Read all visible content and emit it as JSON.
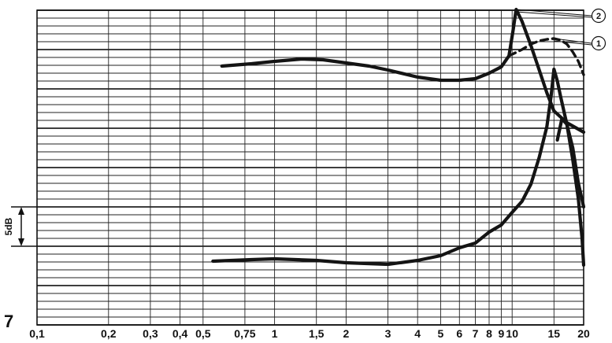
{
  "chart_data": {
    "type": "line",
    "figure_label": "7",
    "x_scale": "log",
    "x_range": [
      0.1,
      20
    ],
    "x_ticks": [
      {
        "value": 0.1,
        "label": "0,1"
      },
      {
        "value": 0.2,
        "label": "0,2"
      },
      {
        "value": 0.3,
        "label": "0,3"
      },
      {
        "value": 0.4,
        "label": "0,4"
      },
      {
        "value": 0.5,
        "label": "0,5"
      },
      {
        "value": 0.75,
        "label": "0,75"
      },
      {
        "value": 1,
        "label": "1"
      },
      {
        "value": 1.5,
        "label": "1,5"
      },
      {
        "value": 2,
        "label": "2"
      },
      {
        "value": 3,
        "label": "3"
      },
      {
        "value": 4,
        "label": "4"
      },
      {
        "value": 5,
        "label": "5"
      },
      {
        "value": 6,
        "label": "6"
      },
      {
        "value": 7,
        "label": "7"
      },
      {
        "value": 8,
        "label": "8"
      },
      {
        "value": 9,
        "label": "9"
      },
      {
        "value": 10,
        "label": "10"
      },
      {
        "value": 15,
        "label": "15"
      },
      {
        "value": 20,
        "label": "20"
      }
    ],
    "y_unit": "dB",
    "y_range": [
      -40,
      0
    ],
    "y_grid_step": 1,
    "scale_bar": {
      "label": "5dB",
      "db": 5,
      "from": -25,
      "to": -30
    },
    "grid": true,
    "series": [
      {
        "name": "2",
        "style": "solid",
        "points": [
          [
            0.6,
            -7.1
          ],
          [
            0.8,
            -6.8
          ],
          [
            1,
            -6.5
          ],
          [
            1.3,
            -6.2
          ],
          [
            1.6,
            -6.3
          ],
          [
            2,
            -6.7
          ],
          [
            2.5,
            -7.1
          ],
          [
            3,
            -7.6
          ],
          [
            4,
            -8.5
          ],
          [
            5,
            -8.9
          ],
          [
            6,
            -8.9
          ],
          [
            7,
            -8.7
          ],
          [
            8,
            -8.0
          ],
          [
            9,
            -7.2
          ],
          [
            9.7,
            -5.8
          ],
          [
            10.1,
            -2.5
          ],
          [
            10.4,
            0.1
          ],
          [
            11,
            -1.4
          ],
          [
            12,
            -4.5
          ],
          [
            13,
            -7.6
          ],
          [
            14,
            -10.5
          ],
          [
            15,
            -12.8
          ],
          [
            17,
            -14.3
          ],
          [
            20,
            -15.5
          ]
        ]
      },
      {
        "name": "1",
        "style": "dashed",
        "points": [
          [
            9.7,
            -5.8
          ],
          [
            11,
            -5.0
          ],
          [
            12,
            -4.3
          ],
          [
            13,
            -3.9
          ],
          [
            14,
            -3.7
          ],
          [
            15,
            -3.6
          ],
          [
            16,
            -3.8
          ],
          [
            17,
            -4.3
          ],
          [
            18,
            -5.3
          ],
          [
            19,
            -6.5
          ],
          [
            20,
            -8.2
          ]
        ]
      },
      {
        "name": "",
        "style": "solid",
        "points": [
          [
            0.55,
            -31.9
          ],
          [
            0.8,
            -31.7
          ],
          [
            1,
            -31.6
          ],
          [
            1.5,
            -31.8
          ],
          [
            2,
            -32.1
          ],
          [
            3,
            -32.3
          ],
          [
            4,
            -31.8
          ],
          [
            5,
            -31.2
          ],
          [
            6,
            -30.2
          ],
          [
            7,
            -29.6
          ],
          [
            8,
            -28.2
          ],
          [
            9,
            -27.3
          ],
          [
            10,
            -25.7
          ],
          [
            11,
            -24.3
          ],
          [
            12,
            -22.1
          ],
          [
            13,
            -18.7
          ],
          [
            14,
            -14.8
          ],
          [
            14.6,
            -10.8
          ],
          [
            15,
            -7.5
          ],
          [
            15.5,
            -9.0
          ],
          [
            16,
            -11.0
          ],
          [
            17,
            -14.5
          ],
          [
            18,
            -19.0
          ],
          [
            19,
            -24.0
          ],
          [
            19.7,
            -29.0
          ],
          [
            20,
            -32.4
          ]
        ]
      },
      {
        "name": "",
        "style": "solid",
        "points": [
          [
            15.5,
            -16.5
          ],
          [
            16.2,
            -13.8
          ],
          [
            17,
            -14.5
          ],
          [
            18,
            -17.5
          ],
          [
            19,
            -22.0
          ],
          [
            20,
            -25.0
          ]
        ]
      }
    ]
  }
}
